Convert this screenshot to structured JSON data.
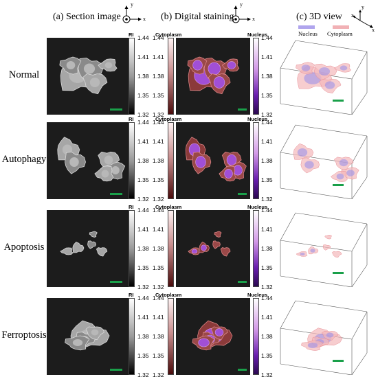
{
  "columns": {
    "a": "(a) Section image",
    "b": "(b) Digital staining",
    "c": "(c) 3D view"
  },
  "axes2d": {
    "x": "x",
    "y": "y"
  },
  "axes3d": {
    "x": "x",
    "y": "y",
    "z": "z"
  },
  "legend3d": {
    "nucleus": "Nucleus",
    "cytoplasm": "Cytoplasm"
  },
  "colorbars": {
    "ri_title": "RI",
    "cyto_title": "Cytoplasm",
    "nuc_title": "Nucleus",
    "ticks": [
      "1.44",
      "1.41",
      "1.38",
      "1.35",
      "1.32"
    ]
  },
  "rows": [
    {
      "label": "Normal"
    },
    {
      "label": "Autophagy"
    },
    {
      "label": "Apoptosis"
    },
    {
      "label": "Ferroptosis"
    }
  ],
  "colors": {
    "scalebar": "#1aa04a",
    "nucleus": "#8f7fe6",
    "cytoplasm": "#f0a9ad"
  }
}
